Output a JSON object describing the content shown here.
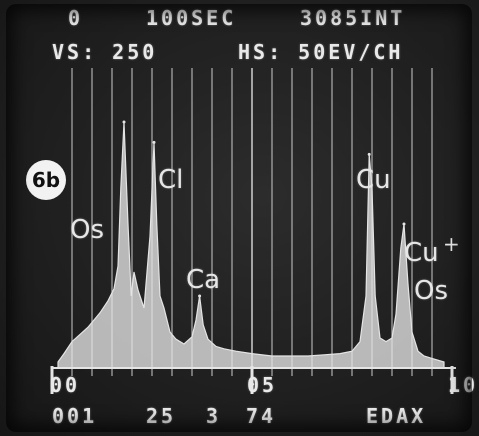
{
  "header": {
    "line1": [
      "0",
      "100SEC",
      "3085INT"
    ],
    "line2": [
      "VS: 250",
      "HS: 50EV/CH"
    ]
  },
  "badge": "6b",
  "peak_labels": {
    "os_left": "Os",
    "cl": "Cl",
    "ca": "Ca",
    "cu": "Cu",
    "cu_plus": "Cu",
    "plus": "+",
    "os_right": "Os"
  },
  "axis": {
    "start": "00",
    "mid": "05",
    "end": "10"
  },
  "footer": {
    "left": "001",
    "n1": "25",
    "n2": "3",
    "n3": "74",
    "right": "EDAX"
  },
  "colors": {
    "trace": "#e4e4e4",
    "grid": "#cfcfcf",
    "background": "#1e1e1e"
  },
  "chart_data": {
    "type": "area",
    "xlabel": "",
    "ylabel": "",
    "xlim": [
      0,
      10
    ],
    "ylim": [
      0,
      250
    ],
    "grid": true,
    "x_ticks": [
      "00",
      "05",
      "10"
    ],
    "gridlines_keV": [
      0.5,
      1.0,
      1.5,
      2.0,
      2.5,
      3.0,
      3.5,
      4.0,
      4.5,
      5.0,
      5.5,
      6.0,
      6.5,
      7.0,
      7.5,
      8.0,
      8.5,
      9.0,
      9.5
    ],
    "spectrum": {
      "x": [
        0.15,
        0.3,
        0.5,
        0.7,
        0.9,
        1.05,
        1.2,
        1.4,
        1.55,
        1.65,
        1.72,
        1.8,
        1.9,
        1.98,
        2.05,
        2.15,
        2.3,
        2.45,
        2.55,
        2.62,
        2.7,
        2.8,
        2.95,
        3.1,
        3.3,
        3.5,
        3.6,
        3.69,
        3.78,
        3.9,
        4.1,
        4.3,
        4.6,
        5.0,
        5.5,
        6.0,
        6.4,
        6.8,
        7.2,
        7.5,
        7.7,
        7.85,
        7.93,
        8.0,
        8.08,
        8.2,
        8.35,
        8.5,
        8.6,
        8.72,
        8.8,
        8.9,
        9.0,
        9.15,
        9.3,
        9.5,
        9.8
      ],
      "y": [
        5,
        12,
        22,
        28,
        34,
        40,
        46,
        56,
        66,
        85,
        150,
        205,
        120,
        60,
        80,
        65,
        50,
        110,
        188,
        120,
        60,
        50,
        30,
        24,
        20,
        26,
        40,
        60,
        36,
        24,
        18,
        16,
        14,
        12,
        10,
        10,
        10,
        11,
        12,
        14,
        22,
        60,
        178,
        150,
        60,
        25,
        22,
        25,
        45,
        100,
        120,
        70,
        30,
        14,
        10,
        8,
        5
      ]
    },
    "peaks": [
      {
        "element": "Os",
        "x": 1.8,
        "y": 205
      },
      {
        "element": "Cl",
        "x": 2.55,
        "y": 188
      },
      {
        "element": "Ca",
        "x": 3.69,
        "y": 60
      },
      {
        "element": "Cu",
        "x": 7.93,
        "y": 178
      },
      {
        "element": "Cu+Os",
        "x": 8.8,
        "y": 120
      }
    ]
  }
}
